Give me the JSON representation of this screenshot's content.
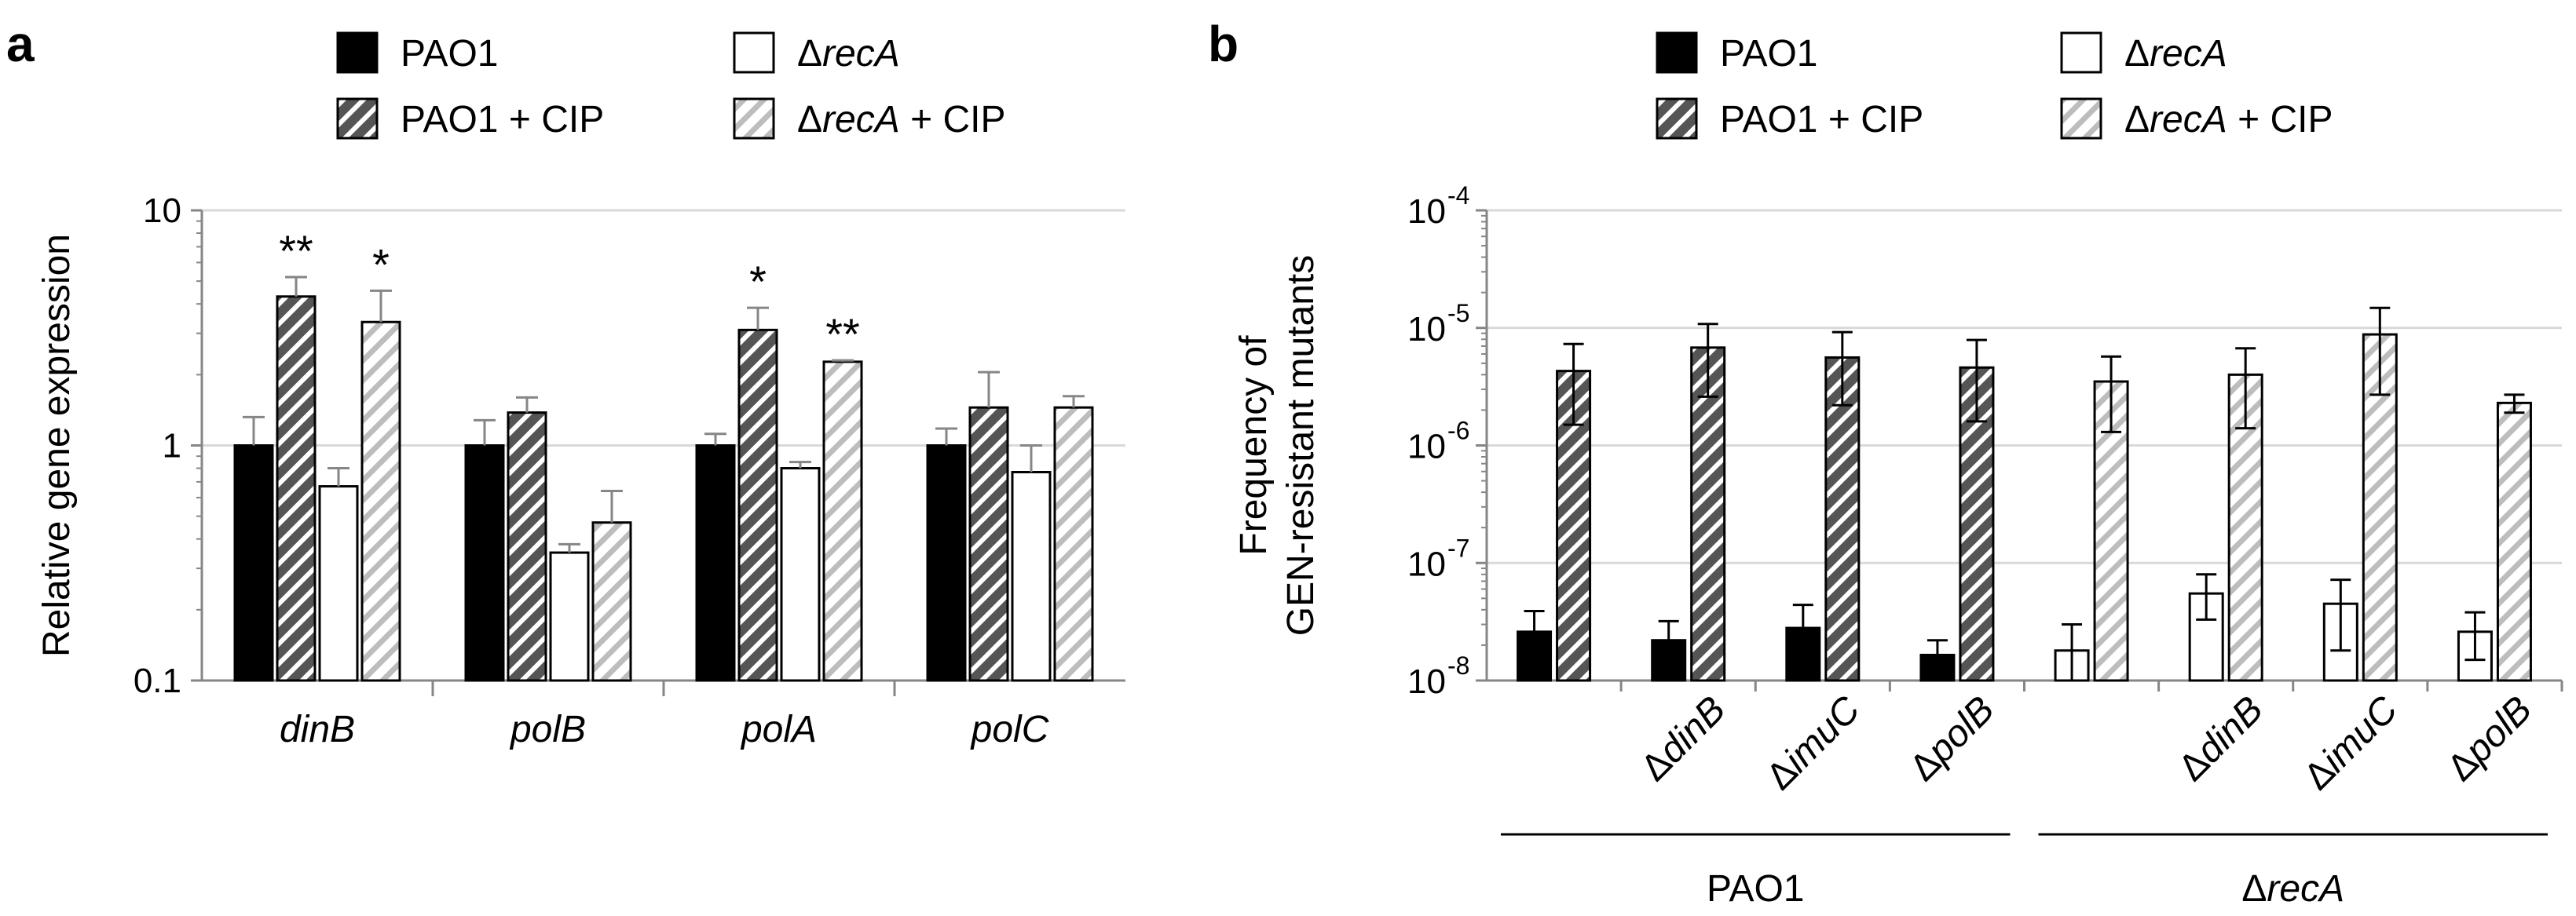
{
  "colors": {
    "pao1": "#000000",
    "pao1_cip_bg": "#555555",
    "pao1_cip_stripe": "#ffffff",
    "reca": "#ffffff",
    "reca_cip_bg": "#ffffff",
    "reca_cip_stripe": "#bdbdbd",
    "gridline": "#d9d9d9",
    "axis": "#868686"
  },
  "chart_data": [
    {
      "panel": "a",
      "type": "bar",
      "yscale": "log",
      "ylim": [
        0.1,
        10
      ],
      "ylabel": "Relative gene expression",
      "xlabel": "",
      "grid": true,
      "yticks": [
        {
          "value": 0.1,
          "label": "0.1"
        },
        {
          "value": 1,
          "label": "1"
        },
        {
          "value": 10,
          "label": "10"
        }
      ],
      "categories": [
        "dinB",
        "polB",
        "polA",
        "polC"
      ],
      "legend": [
        {
          "key": "pao1",
          "text": "PAO1"
        },
        {
          "key": "reca",
          "text": "ΔrecA"
        },
        {
          "key": "pao1_cip",
          "text": "PAO1 + CIP"
        },
        {
          "key": "reca_cip",
          "text": "ΔrecA + CIP"
        }
      ],
      "legend_placement": "top",
      "series": [
        {
          "key": "pao1",
          "name": "PAO1",
          "values": [
            1.0,
            1.0,
            1.0,
            1.0
          ],
          "err_high": [
            1.32,
            1.28,
            1.12,
            1.18
          ]
        },
        {
          "key": "pao1_cip",
          "name": "PAO1 + CIP",
          "values": [
            4.3,
            1.38,
            3.1,
            1.45
          ],
          "err_high": [
            5.2,
            1.6,
            3.85,
            2.05
          ]
        },
        {
          "key": "reca",
          "name": "ΔrecA",
          "values": [
            0.67,
            0.35,
            0.8,
            0.77
          ],
          "err_high": [
            0.8,
            0.38,
            0.85,
            1.0
          ]
        },
        {
          "key": "reca_cip",
          "name": "ΔrecA + CIP",
          "values": [
            3.35,
            0.47,
            2.27,
            1.45
          ],
          "err_high": [
            4.55,
            0.64,
            2.3,
            1.62
          ]
        }
      ],
      "annotations": [
        {
          "category": "dinB",
          "series": "pao1_cip",
          "text": "**"
        },
        {
          "category": "dinB",
          "series": "reca_cip",
          "text": "*"
        },
        {
          "category": "polA",
          "series": "pao1_cip",
          "text": "*"
        },
        {
          "category": "polA",
          "series": "reca_cip",
          "text": "**"
        }
      ]
    },
    {
      "panel": "b",
      "type": "bar",
      "yscale": "log",
      "ylim": [
        1e-08,
        0.0001
      ],
      "ylabel": [
        "Frequency of",
        "GEN-resistant mutants"
      ],
      "xlabel": "",
      "grid": true,
      "yticks": [
        {
          "value": 1e-08,
          "base": "10",
          "exp": "-8"
        },
        {
          "value": 1e-07,
          "base": "10",
          "exp": "-7"
        },
        {
          "value": 1e-06,
          "base": "10",
          "exp": "-6"
        },
        {
          "value": 1e-05,
          "base": "10",
          "exp": "-5"
        },
        {
          "value": 0.0001,
          "base": "10",
          "exp": "-4"
        }
      ],
      "legend": [
        {
          "key": "pao1",
          "text": "PAO1"
        },
        {
          "key": "reca",
          "text": "ΔrecA"
        },
        {
          "key": "pao1_cip",
          "text": "PAO1 + CIP"
        },
        {
          "key": "reca_cip",
          "text": "ΔrecA + CIP"
        }
      ],
      "legend_placement": "top",
      "groups": [
        {
          "strain": "PAO1",
          "label": "",
          "untreated": {
            "key": "pao1",
            "value": 2.6e-08,
            "err_low": 1.7e-08,
            "err_high": 3.9e-08
          },
          "cip": {
            "key": "pao1_cip",
            "value": 4.3e-06,
            "err_low": 1.5e-06,
            "err_high": 7.3e-06
          }
        },
        {
          "strain": "PAO1",
          "label": "ΔdinB",
          "untreated": {
            "key": "pao1",
            "value": 2.2e-08,
            "err_low": 1.4e-08,
            "err_high": 3.2e-08
          },
          "cip": {
            "key": "pao1_cip",
            "value": 6.8e-06,
            "err_low": 2.6e-06,
            "err_high": 1.08e-05
          }
        },
        {
          "strain": "PAO1",
          "label": "ΔimuC",
          "untreated": {
            "key": "pao1",
            "value": 2.8e-08,
            "err_low": 1.7e-08,
            "err_high": 4.4e-08
          },
          "cip": {
            "key": "pao1_cip",
            "value": 5.6e-06,
            "err_low": 2.2e-06,
            "err_high": 9.2e-06
          }
        },
        {
          "strain": "PAO1",
          "label": "ΔpolB",
          "untreated": {
            "key": "pao1",
            "value": 1.65e-08,
            "err_low": 1.25e-08,
            "err_high": 2.2e-08
          },
          "cip": {
            "key": "pao1_cip",
            "value": 4.6e-06,
            "err_low": 1.6e-06,
            "err_high": 7.9e-06
          }
        },
        {
          "strain": "ΔrecA",
          "label": "",
          "untreated": {
            "key": "reca",
            "value": 1.8e-08,
            "err_low": 1e-08,
            "err_high": 3e-08
          },
          "cip": {
            "key": "reca_cip",
            "value": 3.5e-06,
            "err_low": 1.3e-06,
            "err_high": 5.7e-06
          }
        },
        {
          "strain": "ΔrecA",
          "label": "ΔdinB",
          "untreated": {
            "key": "reca",
            "value": 5.5e-08,
            "err_low": 3.3e-08,
            "err_high": 8e-08
          },
          "cip": {
            "key": "reca_cip",
            "value": 4e-06,
            "err_low": 1.4e-06,
            "err_high": 6.7e-06
          }
        },
        {
          "strain": "ΔrecA",
          "label": "ΔimuC",
          "untreated": {
            "key": "reca",
            "value": 4.5e-08,
            "err_low": 1.8e-08,
            "err_high": 7.2e-08
          },
          "cip": {
            "key": "reca_cip",
            "value": 8.8e-06,
            "err_low": 2.7e-06,
            "err_high": 1.48e-05
          }
        },
        {
          "strain": "ΔrecA",
          "label": "ΔpolB",
          "untreated": {
            "key": "reca",
            "value": 2.6e-08,
            "err_low": 1.5e-08,
            "err_high": 3.8e-08
          },
          "cip": {
            "key": "reca_cip",
            "value": 2.3e-06,
            "err_low": 1.9e-06,
            "err_high": 2.7e-06
          }
        }
      ],
      "group_labels": [
        {
          "text": "PAO1",
          "from": 0,
          "to": 3
        },
        {
          "text": "ΔrecA",
          "from": 4,
          "to": 7
        }
      ]
    }
  ]
}
